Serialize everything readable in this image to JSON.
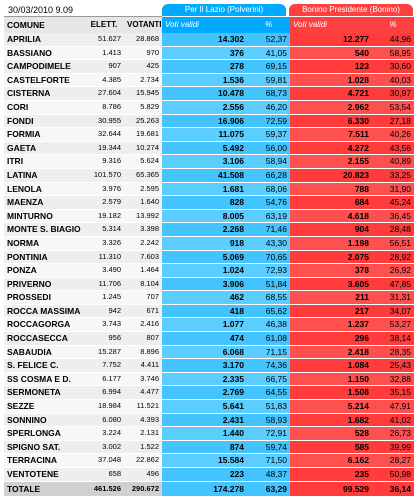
{
  "timestamp": "30/03/2010 9.09",
  "candidates": {
    "left": "Per Il Lazio (Polverini)",
    "right": "Bonino Presidente (Bonino)"
  },
  "headers": {
    "comune": "COMUNE",
    "elettori": "ELETT.",
    "votanti": "VOTANTI",
    "voti_validi_left": "Voti validi",
    "pct_left": "%",
    "voti_validi_right": "Voti validi",
    "pct_right": "%"
  },
  "colors": {
    "polverini": "#44c4ff",
    "bonino": "#ff3b3b"
  },
  "rows": [
    {
      "comune": "APRILIA",
      "elettori": "51.627",
      "votanti": "28.868",
      "p_voti": "14.302",
      "p_pct": "52,37",
      "b_voti": "12.277",
      "b_pct": "44,96"
    },
    {
      "comune": "BASSIANO",
      "elettori": "1.413",
      "votanti": "970",
      "p_voti": "376",
      "p_pct": "41,05",
      "b_voti": "540",
      "b_pct": "58,95"
    },
    {
      "comune": "CAMPODIMELE",
      "elettori": "907",
      "votanti": "425",
      "p_voti": "278",
      "p_pct": "69,15",
      "b_voti": "123",
      "b_pct": "30,60"
    },
    {
      "comune": "CASTELFORTE",
      "elettori": "4.385",
      "votanti": "2.734",
      "p_voti": "1.536",
      "p_pct": "59,81",
      "b_voti": "1.028",
      "b_pct": "40,03"
    },
    {
      "comune": "CISTERNA",
      "elettori": "27.604",
      "votanti": "15.945",
      "p_voti": "10.478",
      "p_pct": "68,73",
      "b_voti": "4.721",
      "b_pct": "30,97"
    },
    {
      "comune": "CORI",
      "elettori": "8.786",
      "votanti": "5.829",
      "p_voti": "2.556",
      "p_pct": "46,20",
      "b_voti": "2.962",
      "b_pct": "53,54"
    },
    {
      "comune": "FONDI",
      "elettori": "30.955",
      "votanti": "25.263",
      "p_voti": "16.906",
      "p_pct": "72,59",
      "b_voti": "6.330",
      "b_pct": "27,18"
    },
    {
      "comune": "FORMIA",
      "elettori": "32.644",
      "votanti": "19.681",
      "p_voti": "11.075",
      "p_pct": "59,37",
      "b_voti": "7.511",
      "b_pct": "40,26"
    },
    {
      "comune": "GAETA",
      "elettori": "19.344",
      "votanti": "10.274",
      "p_voti": "5.492",
      "p_pct": "56,00",
      "b_voti": "4.272",
      "b_pct": "43,56"
    },
    {
      "comune": "ITRI",
      "elettori": "9.316",
      "votanti": "5.624",
      "p_voti": "3.106",
      "p_pct": "58,94",
      "b_voti": "2.155",
      "b_pct": "40,89"
    },
    {
      "comune": "LATINA",
      "elettori": "101.570",
      "votanti": "65.365",
      "p_voti": "41.508",
      "p_pct": "66,28",
      "b_voti": "20.823",
      "b_pct": "33,25"
    },
    {
      "comune": "LENOLA",
      "elettori": "3.976",
      "votanti": "2.595",
      "p_voti": "1.681",
      "p_pct": "68,06",
      "b_voti": "788",
      "b_pct": "31,90"
    },
    {
      "comune": "MAENZA",
      "elettori": "2.579",
      "votanti": "1.640",
      "p_voti": "828",
      "p_pct": "54,76",
      "b_voti": "684",
      "b_pct": "45,24"
    },
    {
      "comune": "MINTURNO",
      "elettori": "19.182",
      "votanti": "13.992",
      "p_voti": "8.005",
      "p_pct": "63,19",
      "b_voti": "4.618",
      "b_pct": "36,45"
    },
    {
      "comune": "MONTE S. BIAGIO",
      "elettori": "5.314",
      "votanti": "3.398",
      "p_voti": "2.268",
      "p_pct": "71,46",
      "b_voti": "904",
      "b_pct": "28,48"
    },
    {
      "comune": "NORMA",
      "elettori": "3.326",
      "votanti": "2.242",
      "p_voti": "918",
      "p_pct": "43,30",
      "b_voti": "1.198",
      "b_pct": "56,51"
    },
    {
      "comune": "PONTINIA",
      "elettori": "11.310",
      "votanti": "7.603",
      "p_voti": "5.069",
      "p_pct": "70,65",
      "b_voti": "2.075",
      "b_pct": "28,92"
    },
    {
      "comune": "PONZA",
      "elettori": "3.490",
      "votanti": "1.464",
      "p_voti": "1.024",
      "p_pct": "72,93",
      "b_voti": "378",
      "b_pct": "26,92"
    },
    {
      "comune": "PRIVERNO",
      "elettori": "11.706",
      "votanti": "8.104",
      "p_voti": "3.906",
      "p_pct": "51,84",
      "b_voti": "3.605",
      "b_pct": "47,85"
    },
    {
      "comune": "PROSSEDI",
      "elettori": "1.245",
      "votanti": "707",
      "p_voti": "462",
      "p_pct": "68,55",
      "b_voti": "211",
      "b_pct": "31,31"
    },
    {
      "comune": "ROCCA MASSIMA",
      "elettori": "942",
      "votanti": "671",
      "p_voti": "418",
      "p_pct": "65,62",
      "b_voti": "217",
      "b_pct": "34,07"
    },
    {
      "comune": "ROCCAGORGA",
      "elettori": "3.743",
      "votanti": "2.416",
      "p_voti": "1.077",
      "p_pct": "46,38",
      "b_voti": "1.237",
      "b_pct": "53,27"
    },
    {
      "comune": "ROCCASECCA",
      "elettori": "956",
      "votanti": "807",
      "p_voti": "474",
      "p_pct": "61,08",
      "b_voti": "296",
      "b_pct": "38,14"
    },
    {
      "comune": "SABAUDIA",
      "elettori": "15.287",
      "votanti": "8.896",
      "p_voti": "6.068",
      "p_pct": "71,15",
      "b_voti": "2.418",
      "b_pct": "28,35"
    },
    {
      "comune": "S. FELICE C.",
      "elettori": "7.752",
      "votanti": "4.411",
      "p_voti": "3.170",
      "p_pct": "74,36",
      "b_voti": "1.084",
      "b_pct": "25,43"
    },
    {
      "comune": "SS COSMA E D.",
      "elettori": "6.177",
      "votanti": "3.746",
      "p_voti": "2.335",
      "p_pct": "66,75",
      "b_voti": "1.150",
      "b_pct": "32,88"
    },
    {
      "comune": "SERMONETA",
      "elettori": "6.994",
      "votanti": "4.477",
      "p_voti": "2.769",
      "p_pct": "64,55",
      "b_voti": "1.508",
      "b_pct": "35,15"
    },
    {
      "comune": "SEZZE",
      "elettori": "18.984",
      "votanti": "11.521",
      "p_voti": "5.641",
      "p_pct": "51,83",
      "b_voti": "5.214",
      "b_pct": "47,91"
    },
    {
      "comune": "SONNINO",
      "elettori": "6.080",
      "votanti": "4.393",
      "p_voti": "2.431",
      "p_pct": "58,93",
      "b_voti": "1.682",
      "b_pct": "41,02"
    },
    {
      "comune": "SPERLONGA",
      "elettori": "3.224",
      "votanti": "2.131",
      "p_voti": "1.440",
      "p_pct": "72,91",
      "b_voti": "528",
      "b_pct": "26,73"
    },
    {
      "comune": "SPIGNO SAT.",
      "elettori": "3.002",
      "votanti": "1.522",
      "p_voti": "874",
      "p_pct": "59,74",
      "b_voti": "585",
      "b_pct": "39,99"
    },
    {
      "comune": "TERRACINA",
      "elettori": "37.048",
      "votanti": "22.862",
      "p_voti": "15.584",
      "p_pct": "71,50",
      "b_voti": "6.162",
      "b_pct": "28,27"
    },
    {
      "comune": "VENTOTENE",
      "elettori": "658",
      "votanti": "496",
      "p_voti": "223",
      "p_pct": "48,37",
      "b_voti": "235",
      "b_pct": "50,98"
    }
  ],
  "totals": {
    "label": "TOTALE",
    "elettori": "461.526",
    "votanti": "290.672",
    "p_voti": "174.278",
    "p_pct": "63,29",
    "b_voti": "99.529",
    "b_pct": "36,14"
  }
}
